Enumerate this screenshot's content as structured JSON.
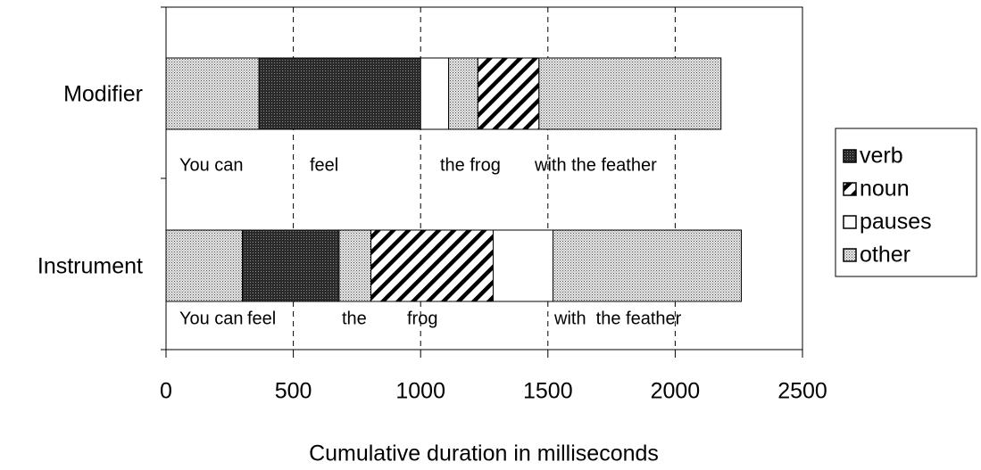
{
  "chart_data": {
    "type": "stacked-horizontal-bar",
    "xlabel": "Cumulative duration in milliseconds",
    "xlim": [
      0,
      2500
    ],
    "xticks": [
      0,
      500,
      1000,
      1500,
      2000,
      2500
    ],
    "grid": true,
    "legend": "right",
    "categories": [
      "Modifier",
      "Instrument"
    ],
    "series": [
      {
        "name": "verb",
        "color": "#333333",
        "pattern": "dense"
      },
      {
        "name": "noun",
        "color": "#000000",
        "pattern": "hatch"
      },
      {
        "name": "pauses",
        "color": "#ffffff",
        "pattern": "none"
      },
      {
        "name": "other",
        "color": "#9a9a9a",
        "pattern": "dots"
      }
    ],
    "bars": [
      {
        "segments": [
          {
            "series": 3,
            "value": 365
          },
          {
            "series": 0,
            "value": 635
          },
          {
            "series": 2,
            "value": 110
          },
          {
            "series": 3,
            "value": 115
          },
          {
            "series": 1,
            "value": 240
          },
          {
            "series": 3,
            "value": 715
          }
        ],
        "words": [
          "You can",
          "feel",
          "the frog",
          "with the feather"
        ]
      },
      {
        "segments": [
          {
            "series": 3,
            "value": 300
          },
          {
            "series": 0,
            "value": 380
          },
          {
            "series": 3,
            "value": 125
          },
          {
            "series": 1,
            "value": 480
          },
          {
            "series": 2,
            "value": 235
          },
          {
            "series": 3,
            "value": 740
          }
        ],
        "words": [
          "You can",
          "feel",
          "the",
          "frog",
          "with  the feather"
        ]
      }
    ]
  }
}
